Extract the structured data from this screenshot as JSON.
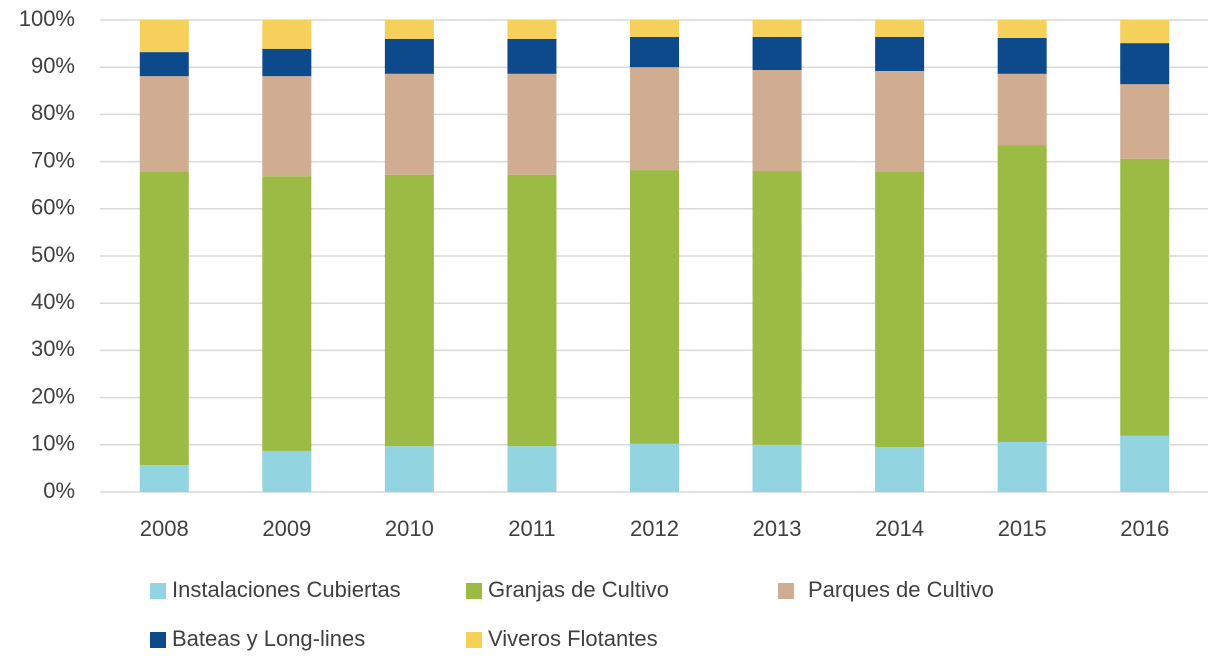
{
  "chart_data": {
    "type": "stacked_bar",
    "categories": [
      "2008",
      "2009",
      "2010",
      "2011",
      "2012",
      "2013",
      "2014",
      "2015",
      "2016"
    ],
    "series": [
      {
        "name": "Instalaciones Cubiertas",
        "color": "#92d4e0",
        "values": [
          5.7,
          8.7,
          9.7,
          9.7,
          10.2,
          10.0,
          9.5,
          10.6,
          11.9
        ]
      },
      {
        "name": "Granjas de Cultivo",
        "color": "#9bbb44",
        "values": [
          62.1,
          58.2,
          57.5,
          57.5,
          58.0,
          58.0,
          58.3,
          62.9,
          58.7
        ]
      },
      {
        "name": "Parques de Cultivo",
        "color": "#d0ac90",
        "values": [
          20.3,
          21.2,
          21.4,
          21.4,
          21.8,
          21.4,
          21.4,
          15.1,
          15.8
        ]
      },
      {
        "name": "Bateas y Long-lines",
        "color": "#0c4a8c",
        "values": [
          5.1,
          5.8,
          7.4,
          7.4,
          6.4,
          7.0,
          7.2,
          7.6,
          8.7
        ]
      },
      {
        "name": "Viveros Flotantes",
        "color": "#f5d05a",
        "values": [
          6.8,
          6.1,
          4.0,
          4.0,
          3.6,
          3.6,
          3.6,
          3.8,
          4.9
        ]
      }
    ],
    "ylim": [
      0,
      100
    ],
    "yticks": [
      {
        "value": 0,
        "label": "0%"
      },
      {
        "value": 10,
        "label": "10%"
      },
      {
        "value": 20,
        "label": "20%"
      },
      {
        "value": 30,
        "label": "30%"
      },
      {
        "value": 40,
        "label": "40%"
      },
      {
        "value": 50,
        "label": "50%"
      },
      {
        "value": 60,
        "label": "60%"
      },
      {
        "value": 70,
        "label": "70%"
      },
      {
        "value": 80,
        "label": "80%"
      },
      {
        "value": 90,
        "label": "90%"
      },
      {
        "value": 100,
        "label": "100%"
      }
    ],
    "grid": true
  }
}
